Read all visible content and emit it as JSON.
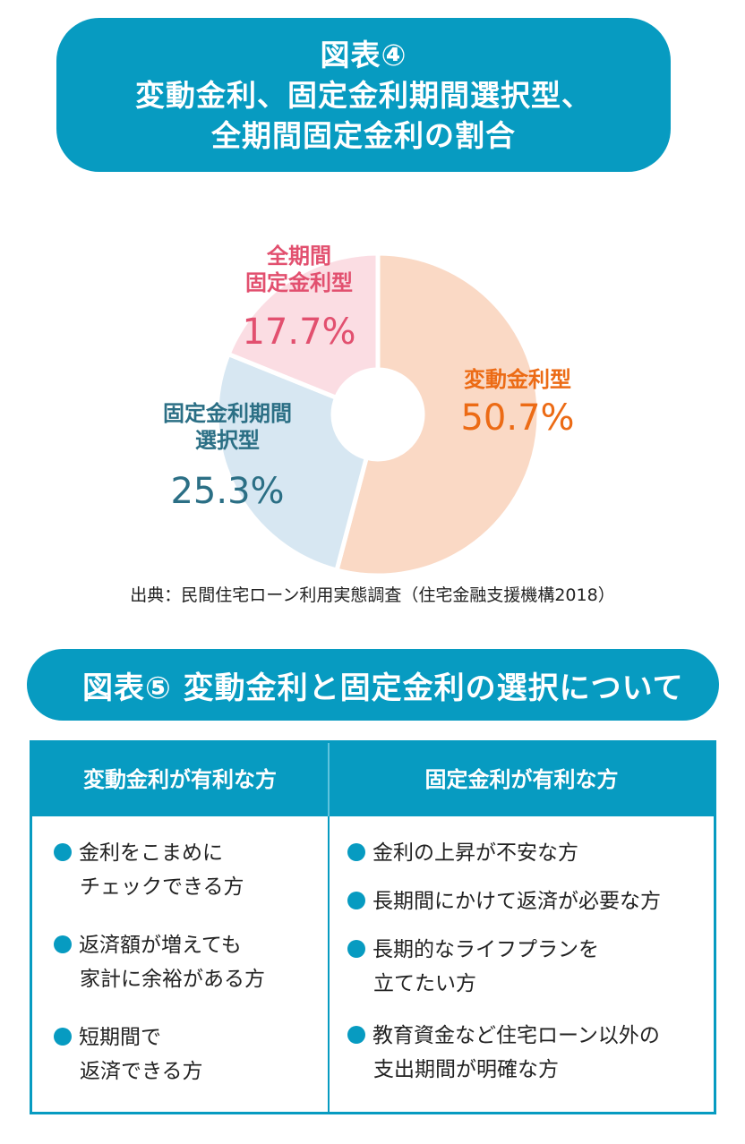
{
  "figure4": {
    "title_line1": "図表④",
    "title_line2": "変動金利、固定金利期間選択型、",
    "title_line3": "全期間固定金利の割合"
  },
  "chart_data": {
    "type": "pie",
    "donut": true,
    "slices": [
      {
        "label_lines": [
          "変動金利型"
        ],
        "value": 50.7,
        "value_label": "50.7%",
        "fill": "#fad9c5",
        "text_color": "#ec6b15"
      },
      {
        "label_lines": [
          "固定金利期間",
          "選択型"
        ],
        "value": 25.3,
        "value_label": "25.3%",
        "fill": "#d7e7f2",
        "text_color": "#2b6f85"
      },
      {
        "label_lines": [
          "全期間",
          "固定金利型"
        ],
        "value": 17.7,
        "value_label": "17.7%",
        "fill": "#fbdde3",
        "text_color": "#e2506f"
      }
    ]
  },
  "source": "出典：民間住宅ローン利用実態調査（住宅金融支援機構2018）",
  "figure5": {
    "title": "図表⑤ 変動金利と固定金利の選択について"
  },
  "comparison": {
    "variable_header": "変動金利が有利な方",
    "fixed_header": "固定金利が有利な方",
    "variable_items": [
      {
        "line1": "金利をこまめに",
        "line2": "チェックできる方"
      },
      {
        "line1": "返済額が増えても",
        "line2": "家計に余裕がある方"
      },
      {
        "line1": "短期間で",
        "line2": "返済できる方"
      }
    ],
    "fixed_items": [
      {
        "line1": "金利の上昇が不安な方"
      },
      {
        "line1": "長期間にかけて返済が必要な方"
      },
      {
        "line1": "長期的なライフプランを",
        "line2": "立てたい方"
      },
      {
        "line1": "教育資金など住宅ローン以外の",
        "line2": "支出期間が明確な方"
      }
    ]
  },
  "colors": {
    "accent": "#079bc1"
  }
}
